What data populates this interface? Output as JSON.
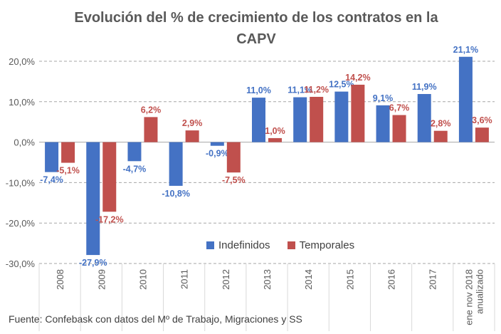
{
  "chart_data": {
    "type": "bar",
    "title_line1": "Evolución del % de crecimiento de los contratos en la",
    "title_line2": "CAPV",
    "categories": [
      "2008",
      "2009",
      "2010",
      "2011",
      "2012",
      "2013",
      "2014",
      "2015",
      "2016",
      "2017",
      "ene nov 2018 anualizado"
    ],
    "category_lines": [
      [
        "2008"
      ],
      [
        "2009"
      ],
      [
        "2010"
      ],
      [
        "2011"
      ],
      [
        "2012"
      ],
      [
        "2013"
      ],
      [
        "2014"
      ],
      [
        "2015"
      ],
      [
        "2016"
      ],
      [
        "2017"
      ],
      [
        "ene nov 2018",
        "anualizado"
      ]
    ],
    "series": [
      {
        "name": "Indefinidos",
        "color": "#4472C4",
        "values": [
          -7.4,
          -27.9,
          -4.7,
          -10.8,
          -0.9,
          11.0,
          11.1,
          12.5,
          9.1,
          11.9,
          21.1
        ],
        "labels": [
          "-7,4%",
          "-27,9%",
          "-4,7%",
          "-10,8%",
          "-0,9%",
          "11,0%",
          "11,1%",
          "12,5%",
          "9,1%",
          "11,9%",
          "21,1%"
        ]
      },
      {
        "name": "Temporales",
        "color": "#C0504D",
        "values": [
          -5.1,
          -17.2,
          6.2,
          2.9,
          -7.5,
          1.0,
          11.2,
          14.2,
          6.7,
          2.8,
          3.6
        ],
        "labels": [
          "-5,1%",
          "-17,2%",
          "6,2%",
          "2,9%",
          "-7,5%",
          "1,0%",
          "11,2%",
          "14,2%",
          "6,7%",
          "2,8%",
          "3,6%"
        ]
      }
    ],
    "ylim": [
      -30,
      20
    ],
    "yticks": [
      -30,
      -20,
      -10,
      0,
      10,
      20
    ],
    "ytick_labels": [
      "-30,0%",
      "-20,0%",
      "-10,0%",
      "0,0%",
      "10,0%",
      "20,0%"
    ],
    "grid": "dashed-horizontal",
    "legend_position": "bottom-center",
    "source": "Fuente: Confebask con datos del Mº de Trabajo, Migraciones y SS"
  }
}
